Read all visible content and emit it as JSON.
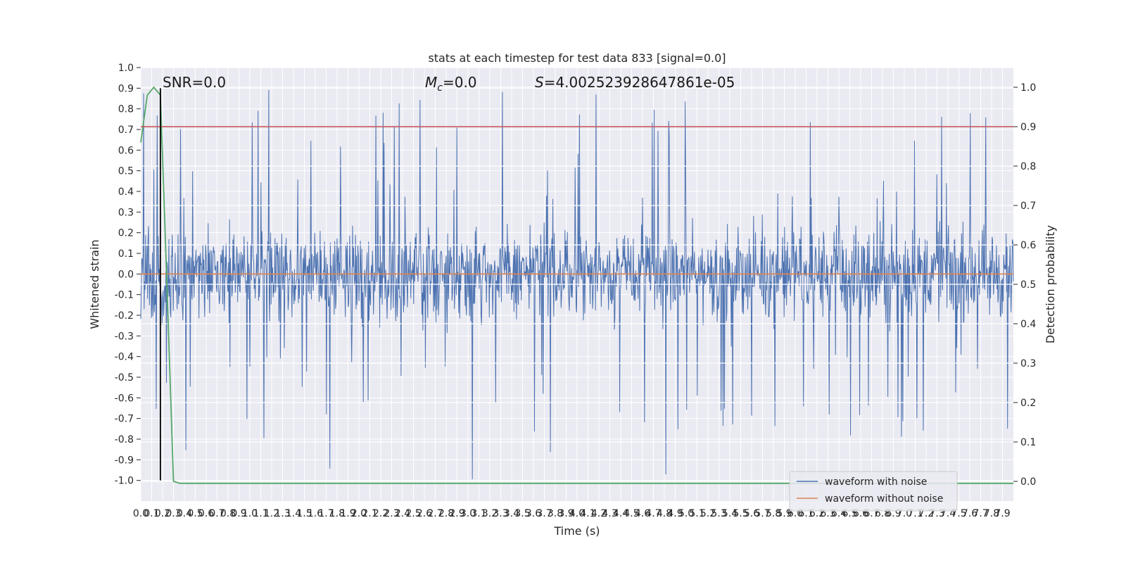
{
  "chart_data": {
    "type": "line",
    "title": "stats at each timestep for test data 833 [signal=0.0]",
    "xlabel": "Time (s)",
    "ylabel": "Whitened strain",
    "y2label": "Detection probability",
    "xlim": [
      0.0,
      8.0
    ],
    "ylim": [
      -1.1,
      1.0
    ],
    "y2lim": [
      -0.05,
      1.05
    ],
    "x_ticks": [
      "0.0",
      "0.1",
      "0.2",
      "0.3",
      "0.4",
      "0.5",
      "0.6",
      "0.7",
      "0.8",
      "0.9",
      "1.0",
      "1.1",
      "1.2",
      "1.3",
      "1.4",
      "1.5",
      "1.6",
      "1.7",
      "1.8",
      "1.9",
      "2.0",
      "2.1",
      "2.2",
      "2.3",
      "2.4",
      "2.5",
      "2.6",
      "2.7",
      "2.8",
      "2.9",
      "3.0",
      "3.1",
      "3.2",
      "3.3",
      "3.4",
      "3.5",
      "3.6",
      "3.7",
      "3.8",
      "3.9",
      "4.0",
      "4.1",
      "4.2",
      "4.3",
      "4.4",
      "4.5",
      "4.6",
      "4.7",
      "4.8",
      "4.9",
      "5.0",
      "5.1",
      "5.2",
      "5.3",
      "5.4",
      "5.5",
      "5.6",
      "5.7",
      "5.8",
      "5.9",
      "6.0",
      "6.1",
      "6.2",
      "6.3",
      "6.4",
      "6.5",
      "6.6",
      "6.7",
      "6.8",
      "6.9",
      "7.0",
      "7.1",
      "7.2",
      "7.3",
      "7.4",
      "7.5",
      "7.6",
      "7.7",
      "7.8",
      "7.9"
    ],
    "y_ticks": [
      "1.0",
      "0.9",
      "0.8",
      "0.7",
      "0.6",
      "0.5",
      "0.4",
      "0.3",
      "0.2",
      "0.1",
      "0.0",
      "-0.1",
      "-0.2",
      "-0.3",
      "-0.4",
      "-0.5",
      "-0.6",
      "-0.7",
      "-0.8",
      "-0.9",
      "-1.0"
    ],
    "y2_ticks": [
      "0.0",
      "0.1",
      "0.2",
      "0.3",
      "0.4",
      "0.5",
      "0.6",
      "0.7",
      "0.8",
      "0.9",
      "1.0"
    ],
    "grid": true,
    "legend_position": "bottom-right",
    "series": [
      {
        "name": "waveform with noise",
        "color": "#4c72b0",
        "axis": "left",
        "kind": "noise",
        "band": 0.32,
        "spike_max": 0.9,
        "spike_min": -1.0
      },
      {
        "name": "waveform without noise",
        "color": "#dd8452",
        "axis": "left",
        "kind": "constant",
        "value": 0.0
      },
      {
        "color": "#55a868",
        "axis": "right",
        "kind": "line",
        "x": [
          0.0,
          0.06,
          0.12,
          0.18,
          0.24,
          0.3,
          0.36,
          8.0
        ],
        "y": [
          0.86,
          0.98,
          1.0,
          0.98,
          0.5,
          0.0,
          -0.005,
          -0.005
        ]
      }
    ],
    "hlines": [
      {
        "value": 0.9,
        "axis": "right",
        "color": "#c44e52"
      }
    ],
    "vlines": [
      {
        "value": 0.18,
        "color": "#000000",
        "ymin": -1.0,
        "ymax": 0.9
      }
    ],
    "annotations": [
      {
        "id": "snr",
        "text": "SNR=0.0"
      },
      {
        "id": "mc",
        "prefix": "M",
        "sub": "c",
        "text": "=0.0"
      },
      {
        "id": "s",
        "prefix": "S",
        "text": "=4.002523928647861e-05"
      }
    ]
  }
}
